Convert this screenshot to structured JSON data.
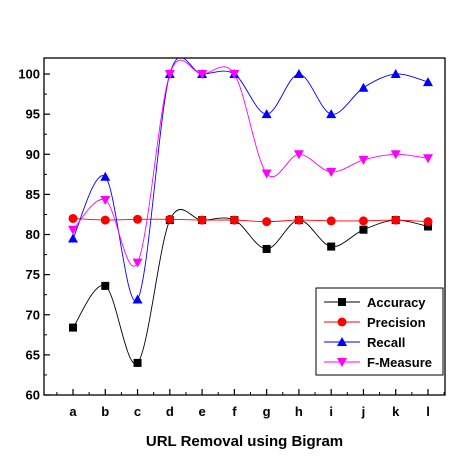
{
  "chart_data": {
    "type": "line",
    "title": "",
    "xlabel": "URL Removal using Bigram",
    "ylabel": "",
    "categories": [
      "a",
      "b",
      "c",
      "d",
      "e",
      "f",
      "g",
      "h",
      "i",
      "j",
      "k",
      "l"
    ],
    "ylim": [
      60,
      102
    ],
    "yticks": [
      60,
      65,
      70,
      75,
      80,
      85,
      90,
      95,
      100
    ],
    "grid": false,
    "legend_position": "bottom-right",
    "series": [
      {
        "name": "Accuracy",
        "color": "#000000",
        "marker": "square",
        "values": [
          68.4,
          73.6,
          64.0,
          81.8,
          81.8,
          81.8,
          78.2,
          81.8,
          78.5,
          80.6,
          81.8,
          81.0
        ]
      },
      {
        "name": "Precision",
        "color": "#ff0000",
        "marker": "circle",
        "values": [
          82.0,
          81.8,
          81.9,
          81.9,
          81.8,
          81.8,
          81.6,
          81.8,
          81.7,
          81.7,
          81.8,
          81.6
        ]
      },
      {
        "name": "Recall",
        "color": "#0000ff",
        "marker": "triangle-up",
        "values": [
          79.5,
          87.2,
          71.9,
          100,
          100,
          100,
          95.0,
          100,
          95.0,
          98.3,
          100,
          99.0
        ]
      },
      {
        "name": "F-Measure",
        "color": "#ff00ff",
        "marker": "triangle-down",
        "values": [
          80.6,
          84.3,
          76.5,
          100,
          100,
          100,
          87.6,
          90.0,
          87.8,
          89.3,
          90.0,
          89.5
        ]
      }
    ]
  }
}
